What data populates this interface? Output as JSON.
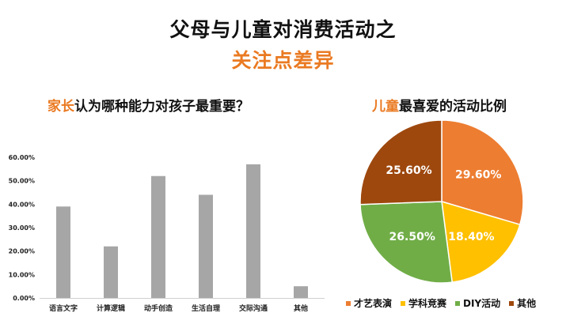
{
  "header": {
    "title_line1": "父母与儿童对消费活动之",
    "title_line2": "关注点差异"
  },
  "left_panel": {
    "subtitle_highlight": "家长",
    "subtitle_rest": "认为哪种能力对孩子最重要？"
  },
  "right_panel": {
    "subtitle_highlight": "儿童",
    "subtitle_rest": "最喜爱的活动比例"
  },
  "chart_data": [
    {
      "type": "bar",
      "categories": [
        "语言文字",
        "计算逻辑",
        "动手创造",
        "生活自理",
        "交际沟通",
        "其他"
      ],
      "values": [
        0.39,
        0.22,
        0.52,
        0.44,
        0.57,
        0.05
      ],
      "ylim": [
        0,
        0.6
      ],
      "yticks": [
        "0.00%",
        "10.00%",
        "20.00%",
        "30.00%",
        "40.00%",
        "50.00%",
        "60.00%"
      ],
      "bar_color": "#a6a6a6",
      "grid": false
    },
    {
      "type": "pie",
      "slices": [
        {
          "label": "才艺表演",
          "value": 29.6,
          "display": "29.60%",
          "color": "#ed7d31"
        },
        {
          "label": "学科竞赛",
          "value": 18.4,
          "display": "18.40%",
          "color": "#ffc000"
        },
        {
          "label": "DIY活动",
          "value": 26.5,
          "display": "26.50%",
          "color": "#70ad47"
        },
        {
          "label": "其他",
          "value": 25.6,
          "display": "25.60%",
          "color": "#9e480e"
        }
      ],
      "legend_position": "bottom"
    }
  ],
  "colors": {
    "accent": "#ea7a22",
    "text": "#111111"
  }
}
